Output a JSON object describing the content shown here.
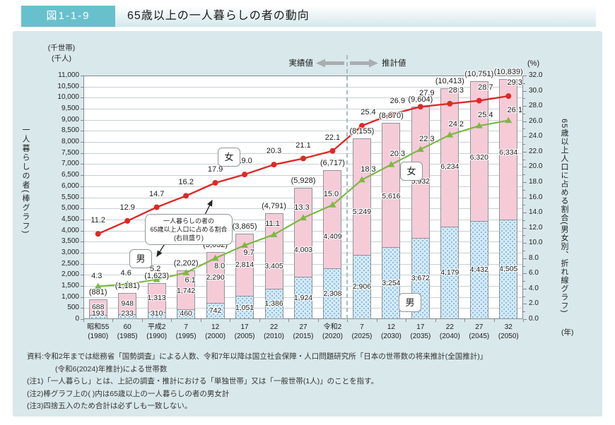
{
  "header": {
    "tag_label": "図1-1-9",
    "title": "65歳以上の一人暮らしの者の動向"
  },
  "axes": {
    "left_unit_lines": [
      "(千世帯)",
      "(千人)"
    ],
    "right_unit": "(%)",
    "x_unit": "(年)",
    "left_title": "一人暮らしの者(棒グラフ)",
    "right_title": "65歳以上人口に占める割合(男女別、折れ線グラフ)",
    "left_min": 0,
    "left_max": 11000,
    "left_step": 500,
    "right_min": 0,
    "right_max": 32,
    "right_step": 2
  },
  "annotations": {
    "actual": "実績値",
    "projection": "推計値",
    "callout": [
      "一人暮らしの者の",
      "65歳以上人口に占める割合",
      "(右目盛り)"
    ],
    "line_female": "女",
    "line_male": "男",
    "bar_female": "女",
    "bar_male": "男"
  },
  "chart_data": {
    "type": "combo: stacked-bar (left axis, thousands) + line (right axis, %)",
    "projection_start_index": 9,
    "categories": [
      {
        "era": "昭和55",
        "year": "(1980)"
      },
      {
        "era": "60",
        "year": "(1985)"
      },
      {
        "era": "平成2",
        "year": "(1990)"
      },
      {
        "era": "7",
        "year": "(1995)"
      },
      {
        "era": "12",
        "year": "(2000)"
      },
      {
        "era": "17",
        "year": "(2005)"
      },
      {
        "era": "22",
        "year": "(2010)"
      },
      {
        "era": "27",
        "year": "(2015)"
      },
      {
        "era": "令和2",
        "year": "(2020)"
      },
      {
        "era": "7",
        "year": "(2025)"
      },
      {
        "era": "12",
        "year": "(2030)"
      },
      {
        "era": "17",
        "year": "(2035)"
      },
      {
        "era": "22",
        "year": "(2040)"
      },
      {
        "era": "27",
        "year": "(2045)"
      },
      {
        "era": "32",
        "year": "(2050)"
      }
    ],
    "series": [
      {
        "name": "female_bar_thousands",
        "values": [
          688,
          948,
          1313,
          1742,
          2290,
          2814,
          3405,
          4003,
          4409,
          5249,
          5616,
          5932,
          6234,
          6320,
          6334
        ]
      },
      {
        "name": "male_bar_thousands",
        "values": [
          193,
          233,
          310,
          460,
          742,
          1051,
          1386,
          1924,
          2308,
          2906,
          3254,
          3672,
          4179,
          4432,
          4505
        ]
      },
      {
        "name": "total_thousands_printed",
        "values": [
          881,
          1181,
          1623,
          2202,
          3032,
          3865,
          4791,
          5928,
          6717,
          8155,
          8870,
          9604,
          10413,
          10751,
          10839
        ]
      },
      {
        "name": "female_pct_line",
        "values": [
          11.2,
          12.9,
          14.7,
          16.2,
          17.9,
          19.0,
          20.3,
          21.1,
          22.1,
          25.4,
          26.9,
          27.9,
          28.3,
          28.7,
          29.3
        ]
      },
      {
        "name": "male_pct_line",
        "values": [
          4.3,
          4.6,
          5.2,
          6.1,
          8.0,
          9.7,
          11.1,
          13.3,
          15.0,
          18.3,
          20.3,
          22.3,
          24.2,
          25.4,
          26.1
        ]
      }
    ],
    "left_axis_range": [
      0,
      11000
    ],
    "right_axis_range": [
      0,
      32
    ]
  },
  "footer": {
    "lines": [
      "資料:令和2年までは総務省「国勢調査」による人数、令和7年以降は国立社会保障・人口問題研究所「日本の世帯数の将来推計(全国推計)」",
      "(令和6(2024)年推計)による世帯数",
      "(注1)「一人暮らし」とは、上記の調査・推計における「単独世帯」又は「一般世帯(1人)」のことを指す。",
      "(注2)棒グラフ上の( )内は65歳以上の一人暮らしの者の男女計",
      "(注3)四捨五入のため合計は必ずしも一致しない。"
    ]
  },
  "colors": {
    "panel_bg": "#d9e8eb",
    "tag_bg": "#69c0cd",
    "female_bar": "#f5cbd8",
    "male_bar": "#d3eaf7",
    "male_bar_dot": "#7fb0d4",
    "female_line": "#dc2a28",
    "male_line": "#7cb944",
    "grid": "#c6d0d3",
    "axis_border": "#7f8a8f"
  }
}
